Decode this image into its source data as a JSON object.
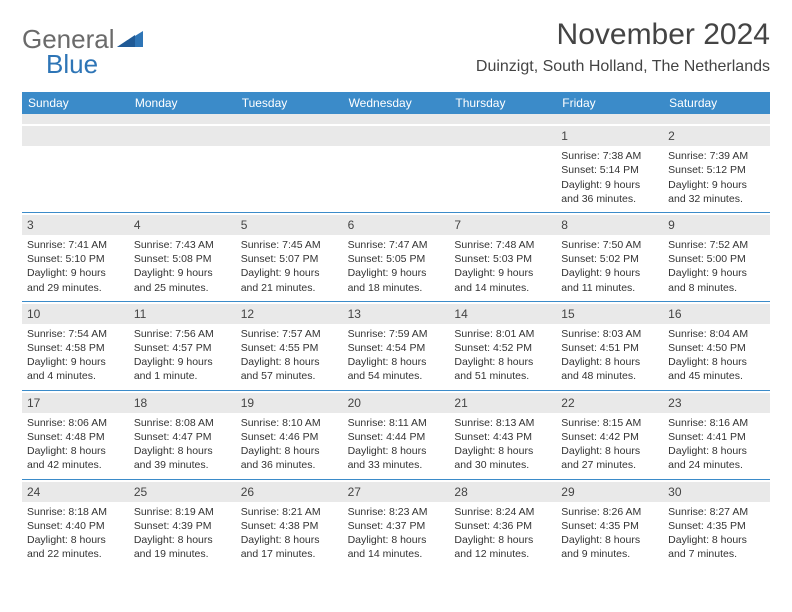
{
  "logo": {
    "gray": "General",
    "blue": "Blue"
  },
  "title": "November 2024",
  "location": "Duinzigt, South Holland, The Netherlands",
  "day_headers": [
    "Sunday",
    "Monday",
    "Tuesday",
    "Wednesday",
    "Thursday",
    "Friday",
    "Saturday"
  ],
  "colors": {
    "header_bg": "#3b8bc9",
    "row_divider": "#3b8bc9",
    "daynum_bg": "#e9e9e9",
    "text": "#333333",
    "logo_gray": "#6a6a6a",
    "logo_blue": "#2e75b6"
  },
  "typography": {
    "title_fontsize": 30,
    "location_fontsize": 16,
    "header_fontsize": 12,
    "cell_fontsize": 10.5
  },
  "weeks": [
    [
      {
        "day": "",
        "sunrise": "",
        "sunset": "",
        "daylight": ""
      },
      {
        "day": "",
        "sunrise": "",
        "sunset": "",
        "daylight": ""
      },
      {
        "day": "",
        "sunrise": "",
        "sunset": "",
        "daylight": ""
      },
      {
        "day": "",
        "sunrise": "",
        "sunset": "",
        "daylight": ""
      },
      {
        "day": "",
        "sunrise": "",
        "sunset": "",
        "daylight": ""
      },
      {
        "day": "1",
        "sunrise": "Sunrise: 7:38 AM",
        "sunset": "Sunset: 5:14 PM",
        "daylight": "Daylight: 9 hours and 36 minutes."
      },
      {
        "day": "2",
        "sunrise": "Sunrise: 7:39 AM",
        "sunset": "Sunset: 5:12 PM",
        "daylight": "Daylight: 9 hours and 32 minutes."
      }
    ],
    [
      {
        "day": "3",
        "sunrise": "Sunrise: 7:41 AM",
        "sunset": "Sunset: 5:10 PM",
        "daylight": "Daylight: 9 hours and 29 minutes."
      },
      {
        "day": "4",
        "sunrise": "Sunrise: 7:43 AM",
        "sunset": "Sunset: 5:08 PM",
        "daylight": "Daylight: 9 hours and 25 minutes."
      },
      {
        "day": "5",
        "sunrise": "Sunrise: 7:45 AM",
        "sunset": "Sunset: 5:07 PM",
        "daylight": "Daylight: 9 hours and 21 minutes."
      },
      {
        "day": "6",
        "sunrise": "Sunrise: 7:47 AM",
        "sunset": "Sunset: 5:05 PM",
        "daylight": "Daylight: 9 hours and 18 minutes."
      },
      {
        "day": "7",
        "sunrise": "Sunrise: 7:48 AM",
        "sunset": "Sunset: 5:03 PM",
        "daylight": "Daylight: 9 hours and 14 minutes."
      },
      {
        "day": "8",
        "sunrise": "Sunrise: 7:50 AM",
        "sunset": "Sunset: 5:02 PM",
        "daylight": "Daylight: 9 hours and 11 minutes."
      },
      {
        "day": "9",
        "sunrise": "Sunrise: 7:52 AM",
        "sunset": "Sunset: 5:00 PM",
        "daylight": "Daylight: 9 hours and 8 minutes."
      }
    ],
    [
      {
        "day": "10",
        "sunrise": "Sunrise: 7:54 AM",
        "sunset": "Sunset: 4:58 PM",
        "daylight": "Daylight: 9 hours and 4 minutes."
      },
      {
        "day": "11",
        "sunrise": "Sunrise: 7:56 AM",
        "sunset": "Sunset: 4:57 PM",
        "daylight": "Daylight: 9 hours and 1 minute."
      },
      {
        "day": "12",
        "sunrise": "Sunrise: 7:57 AM",
        "sunset": "Sunset: 4:55 PM",
        "daylight": "Daylight: 8 hours and 57 minutes."
      },
      {
        "day": "13",
        "sunrise": "Sunrise: 7:59 AM",
        "sunset": "Sunset: 4:54 PM",
        "daylight": "Daylight: 8 hours and 54 minutes."
      },
      {
        "day": "14",
        "sunrise": "Sunrise: 8:01 AM",
        "sunset": "Sunset: 4:52 PM",
        "daylight": "Daylight: 8 hours and 51 minutes."
      },
      {
        "day": "15",
        "sunrise": "Sunrise: 8:03 AM",
        "sunset": "Sunset: 4:51 PM",
        "daylight": "Daylight: 8 hours and 48 minutes."
      },
      {
        "day": "16",
        "sunrise": "Sunrise: 8:04 AM",
        "sunset": "Sunset: 4:50 PM",
        "daylight": "Daylight: 8 hours and 45 minutes."
      }
    ],
    [
      {
        "day": "17",
        "sunrise": "Sunrise: 8:06 AM",
        "sunset": "Sunset: 4:48 PM",
        "daylight": "Daylight: 8 hours and 42 minutes."
      },
      {
        "day": "18",
        "sunrise": "Sunrise: 8:08 AM",
        "sunset": "Sunset: 4:47 PM",
        "daylight": "Daylight: 8 hours and 39 minutes."
      },
      {
        "day": "19",
        "sunrise": "Sunrise: 8:10 AM",
        "sunset": "Sunset: 4:46 PM",
        "daylight": "Daylight: 8 hours and 36 minutes."
      },
      {
        "day": "20",
        "sunrise": "Sunrise: 8:11 AM",
        "sunset": "Sunset: 4:44 PM",
        "daylight": "Daylight: 8 hours and 33 minutes."
      },
      {
        "day": "21",
        "sunrise": "Sunrise: 8:13 AM",
        "sunset": "Sunset: 4:43 PM",
        "daylight": "Daylight: 8 hours and 30 minutes."
      },
      {
        "day": "22",
        "sunrise": "Sunrise: 8:15 AM",
        "sunset": "Sunset: 4:42 PM",
        "daylight": "Daylight: 8 hours and 27 minutes."
      },
      {
        "day": "23",
        "sunrise": "Sunrise: 8:16 AM",
        "sunset": "Sunset: 4:41 PM",
        "daylight": "Daylight: 8 hours and 24 minutes."
      }
    ],
    [
      {
        "day": "24",
        "sunrise": "Sunrise: 8:18 AM",
        "sunset": "Sunset: 4:40 PM",
        "daylight": "Daylight: 8 hours and 22 minutes."
      },
      {
        "day": "25",
        "sunrise": "Sunrise: 8:19 AM",
        "sunset": "Sunset: 4:39 PM",
        "daylight": "Daylight: 8 hours and 19 minutes."
      },
      {
        "day": "26",
        "sunrise": "Sunrise: 8:21 AM",
        "sunset": "Sunset: 4:38 PM",
        "daylight": "Daylight: 8 hours and 17 minutes."
      },
      {
        "day": "27",
        "sunrise": "Sunrise: 8:23 AM",
        "sunset": "Sunset: 4:37 PM",
        "daylight": "Daylight: 8 hours and 14 minutes."
      },
      {
        "day": "28",
        "sunrise": "Sunrise: 8:24 AM",
        "sunset": "Sunset: 4:36 PM",
        "daylight": "Daylight: 8 hours and 12 minutes."
      },
      {
        "day": "29",
        "sunrise": "Sunrise: 8:26 AM",
        "sunset": "Sunset: 4:35 PM",
        "daylight": "Daylight: 8 hours and 9 minutes."
      },
      {
        "day": "30",
        "sunrise": "Sunrise: 8:27 AM",
        "sunset": "Sunset: 4:35 PM",
        "daylight": "Daylight: 8 hours and 7 minutes."
      }
    ]
  ]
}
